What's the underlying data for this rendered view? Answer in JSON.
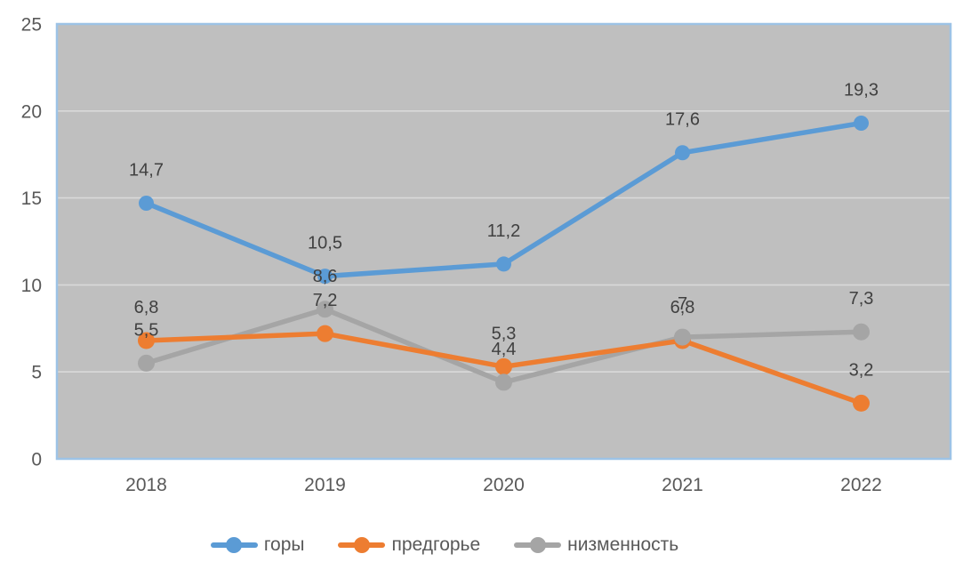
{
  "chart_data": {
    "type": "line",
    "categories": [
      "2018",
      "2019",
      "2020",
      "2021",
      "2022"
    ],
    "series": [
      {
        "name": "горы",
        "color": "#5B9BD5",
        "values": [
          14.7,
          10.5,
          11.2,
          17.6,
          19.3
        ],
        "data_labels": [
          "14,7",
          "10,5",
          "11,2",
          "17,6",
          "19,3"
        ]
      },
      {
        "name": "предгорье",
        "color": "#ED7D31",
        "values": [
          6.8,
          7.2,
          5.3,
          6.8,
          3.2
        ],
        "data_labels": [
          "6,8",
          "7,2",
          "5,3",
          "6,8",
          "3,2"
        ]
      },
      {
        "name": "низменность",
        "color": "#A5A5A5",
        "values": [
          5.5,
          8.6,
          4.4,
          7.0,
          7.3
        ],
        "data_labels": [
          "5,5",
          "8,6",
          "4,4",
          "7",
          "7,3"
        ]
      }
    ],
    "title": "",
    "xlabel": "",
    "ylabel": "",
    "y_axis": {
      "min": 0,
      "max": 25,
      "step": 5,
      "tick_labels": [
        "0",
        "5",
        "10",
        "15",
        "20",
        "25"
      ]
    },
    "grid": true,
    "legend": {
      "position": "bottom",
      "items": [
        "горы",
        "предгорье",
        "низменность"
      ]
    },
    "colors": {
      "plot_background": "#BFBFBF",
      "plot_border": "#9DC3E6",
      "gridline": "#D9D9D9",
      "axis_label": "#595959",
      "data_label": "#404040",
      "page_background": "#FFFFFF"
    }
  }
}
